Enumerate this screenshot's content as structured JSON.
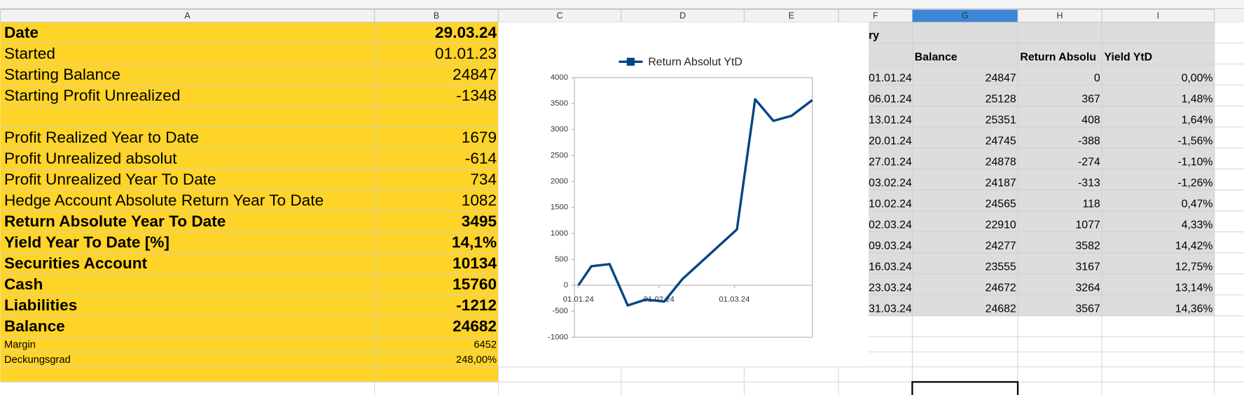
{
  "columns": [
    "A",
    "B",
    "C",
    "D",
    "E",
    "F",
    "G",
    "H",
    "I"
  ],
  "summary": {
    "rows": [
      [
        "Date",
        "29.03.24"
      ],
      [
        "Started",
        "01.01.23"
      ],
      [
        "Starting Balance",
        24847
      ],
      [
        "Starting Profit Unrealized",
        -1348
      ],
      [
        "Profit Realized Year to Date",
        1679
      ],
      [
        "Profit Unrealized absolut",
        -614
      ],
      [
        "Profit Unrealized Year To Date",
        734
      ],
      [
        "Hedge Account Absolute Return Year To Date",
        1082
      ],
      [
        "Return Absolute Year To Date",
        3495
      ],
      [
        "Yield Year To Date [%]",
        "14,1%"
      ],
      [
        "Securities Account",
        10134
      ],
      [
        "Cash",
        15760
      ],
      [
        "Liabilities",
        -1212
      ],
      [
        "Balance",
        24682
      ],
      [
        "Margin",
        6452
      ],
      [
        "Deckungsgrad",
        "248,00%"
      ]
    ]
  },
  "history": {
    "title": "ry",
    "headers": [
      "Balance",
      "Return Absolu",
      "Yield YtD"
    ],
    "rows": [
      [
        "01.01.24",
        24847,
        0,
        "0,00%"
      ],
      [
        "06.01.24",
        25128,
        367,
        "1,48%"
      ],
      [
        "13.01.24",
        25351,
        408,
        "1,64%"
      ],
      [
        "20.01.24",
        24745,
        -388,
        "-1,56%"
      ],
      [
        "27.01.24",
        24878,
        -274,
        "-1,10%"
      ],
      [
        "03.02.24",
        24187,
        -313,
        "-1,26%"
      ],
      [
        "10.02.24",
        24565,
        118,
        "0,47%"
      ],
      [
        "02.03.24",
        22910,
        1077,
        "4,33%"
      ],
      [
        "09.03.24",
        24277,
        3582,
        "14,42%"
      ],
      [
        "16.03.24",
        23555,
        3167,
        "12,75%"
      ],
      [
        "23.03.24",
        24672,
        3264,
        "13,14%"
      ],
      [
        "31.03.24",
        24682,
        3567,
        "14,36%"
      ]
    ]
  },
  "chart_data": {
    "type": "line",
    "legend": "top",
    "x": [
      "01.01.24",
      "06.01.24",
      "13.01.24",
      "20.01.24",
      "27.01.24",
      "03.02.24",
      "10.02.24",
      "02.03.24",
      "09.03.24",
      "16.03.24",
      "23.03.24",
      "31.03.24"
    ],
    "series": [
      {
        "name": "Return Absolut YtD",
        "color": "#004586",
        "values": [
          0,
          367,
          408,
          -388,
          -274,
          -313,
          118,
          1077,
          3582,
          3167,
          3264,
          3567
        ]
      }
    ],
    "xlim": [
      "01.01.24",
      "31.03.24"
    ],
    "xticks": [
      "01.01.24",
      "01.02.24",
      "01.03.24"
    ],
    "ylim": [
      -1000,
      4000
    ],
    "yticks": [
      -1000,
      -500,
      0,
      500,
      1000,
      1500,
      2000,
      2500,
      3000,
      3500,
      4000
    ],
    "grid": false
  }
}
